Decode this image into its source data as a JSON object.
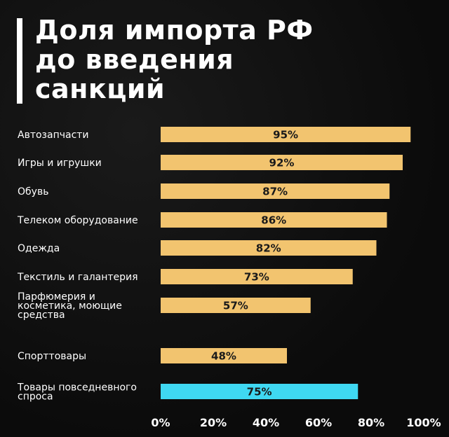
{
  "title": {
    "lines": [
      "Доля импорта РФ",
      "до введения",
      "санкций"
    ]
  },
  "colors": {
    "bar_default": "#f2c46f",
    "bar_highlight": "#3fd8f2",
    "background": "#0d0d0d",
    "text": "#ffffff"
  },
  "chart_data": {
    "type": "bar",
    "orientation": "horizontal",
    "title": "Доля импорта РФ до введения санкций",
    "categories": [
      [
        "Автозапчасти"
      ],
      [
        "Игры и игрушки"
      ],
      [
        "Обувь"
      ],
      [
        "Телеком оборудование"
      ],
      [
        "Одежда"
      ],
      [
        "Текстиль и галантерия"
      ],
      [
        "Парфюмерия и",
        "косметика, моющие",
        "средства"
      ],
      [
        "Спорттовары"
      ],
      [
        "Товары повседневного",
        "спроса"
      ]
    ],
    "values": [
      95,
      92,
      87,
      86,
      82,
      73,
      57,
      48,
      75
    ],
    "value_labels": [
      "95%",
      "92%",
      "87%",
      "86%",
      "82%",
      "73%",
      "57%",
      "48%",
      "75%"
    ],
    "highlight_index": 8,
    "xlim": [
      0,
      100
    ],
    "xticks": [
      0,
      20,
      40,
      60,
      80,
      100
    ],
    "xtick_labels": [
      "0%",
      "20%",
      "40%",
      "60%",
      "80%",
      "100%"
    ],
    "grid": false,
    "legend": "none"
  }
}
